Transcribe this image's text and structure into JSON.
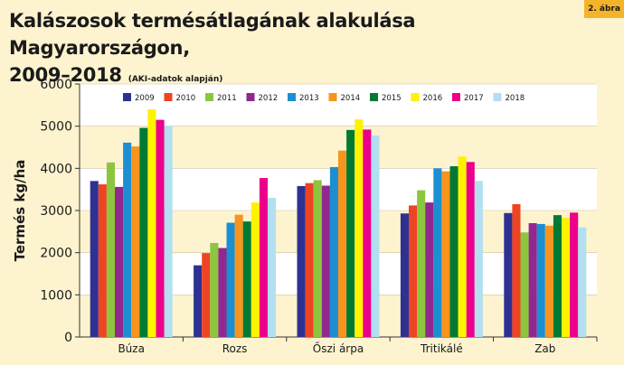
{
  "badge": "2. ábra",
  "title_line1": "Kalászosok termésátlagának alakulása Magyarországon,",
  "title_line2": "2009–2018",
  "title_note": "(AKI-adatok alapján)",
  "chart_data": {
    "type": "bar",
    "ylabel": "Termés kg/ha",
    "xlabel": "",
    "ylim": [
      0,
      6000
    ],
    "yticks": [
      0,
      1000,
      2000,
      3000,
      4000,
      5000,
      6000
    ],
    "legend_position": "top",
    "categories": [
      "Búza",
      "Rozs",
      "Őszi árpa",
      "Tritikálé",
      "Zab"
    ],
    "series": [
      {
        "name": "2009",
        "color": "#2e3192",
        "values": [
          3700,
          1700,
          3580,
          2930,
          2940
        ]
      },
      {
        "name": "2010",
        "color": "#ee4423",
        "values": [
          3620,
          1990,
          3650,
          3120,
          3150
        ]
      },
      {
        "name": "2011",
        "color": "#8cc63f",
        "values": [
          4140,
          2230,
          3720,
          3480,
          2480
        ]
      },
      {
        "name": "2012",
        "color": "#92278f",
        "values": [
          3560,
          2110,
          3590,
          3190,
          2700
        ]
      },
      {
        "name": "2013",
        "color": "#1b8fd2",
        "values": [
          4610,
          2710,
          4030,
          4000,
          2680
        ]
      },
      {
        "name": "2014",
        "color": "#f7941d",
        "values": [
          4520,
          2900,
          4420,
          3930,
          2640
        ]
      },
      {
        "name": "2015",
        "color": "#007a33",
        "values": [
          4960,
          2740,
          4910,
          4050,
          2890
        ]
      },
      {
        "name": "2016",
        "color": "#fff200",
        "values": [
          5400,
          3190,
          5160,
          4280,
          2830
        ]
      },
      {
        "name": "2017",
        "color": "#ec008c",
        "values": [
          5150,
          3770,
          4920,
          4150,
          2950
        ]
      },
      {
        "name": "2018",
        "color": "#b3dff0",
        "values": [
          5010,
          3300,
          4780,
          3700,
          2600
        ]
      }
    ]
  }
}
